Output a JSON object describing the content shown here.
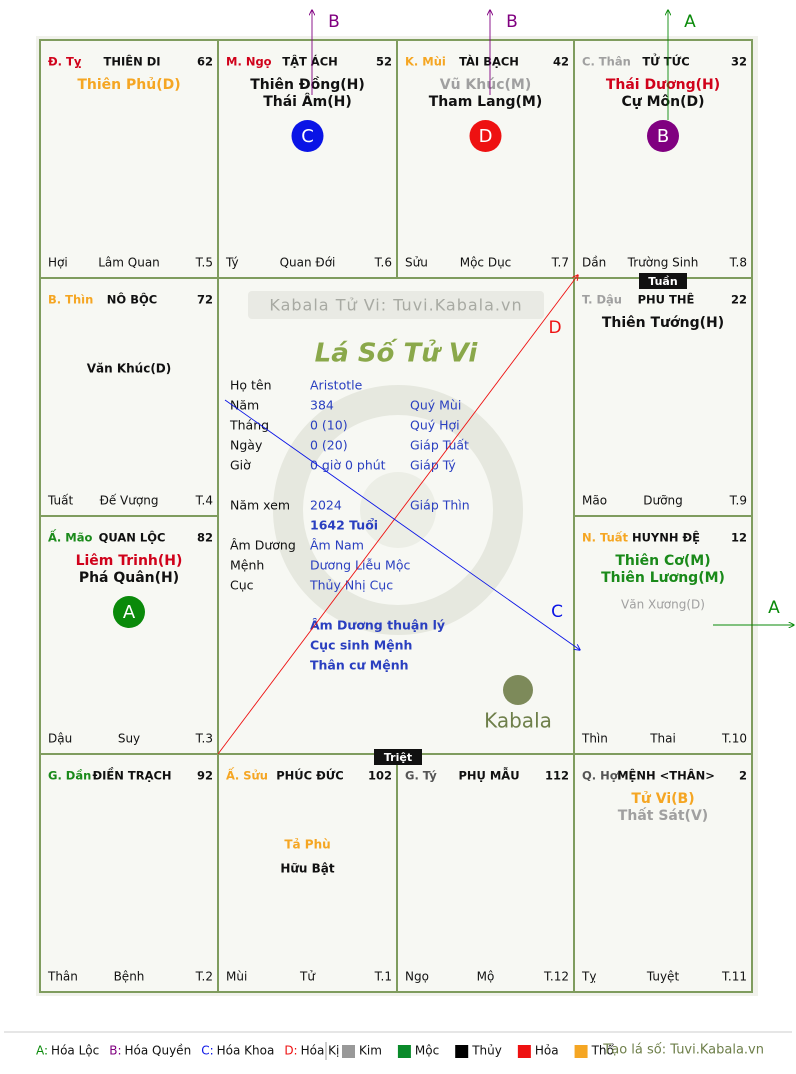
{
  "palaces": [
    {
      "can_chi": "Đ. Tỵ",
      "can_chi_color": "#d0021b",
      "name": "THIÊN DI",
      "number": 62,
      "main_stars": [
        {
          "text": "Thiên Phủ(D)",
          "color": "#f5a623"
        }
      ],
      "bottom": [
        "Hợi",
        "Lâm Quan",
        "T.5"
      ]
    },
    {
      "can_chi": "M. Ngọ",
      "can_chi_color": "#d0021b",
      "name": "TẬT ÁCH",
      "number": 52,
      "main_stars": [
        {
          "text": "Thiên Đồng(H)",
          "color": "#111111"
        },
        {
          "text": "Thái Âm(H)",
          "color": "#111111"
        }
      ],
      "badge": {
        "text": "C",
        "color": "#0a14e6"
      },
      "bottom": [
        "Tý",
        "Quan Đới",
        "T.6"
      ]
    },
    {
      "can_chi": "K. Mùi",
      "can_chi_color": "#f5a623",
      "name": "TÀI BẠCH",
      "number": 42,
      "main_stars": [
        {
          "text": "Vũ Khúc(M)",
          "color": "#a0a0a0"
        },
        {
          "text": "Tham Lang(M)",
          "color": "#111111"
        }
      ],
      "badge": {
        "text": "D",
        "color": "#ee1111"
      },
      "bottom": [
        "Sửu",
        "Mộc Dục",
        "T.7"
      ]
    },
    {
      "can_chi": "C. Thân",
      "can_chi_color": "#a0a0a0",
      "name": "TỬ TỨC",
      "number": 32,
      "main_stars": [
        {
          "text": "Thái Dương(H)",
          "color": "#d0021b"
        },
        {
          "text": "Cự Môn(D)",
          "color": "#111111"
        }
      ],
      "badge": {
        "text": "B",
        "color": "#800080"
      },
      "bottom": [
        "Dần",
        "Trường Sinh",
        "T.8"
      ]
    },
    {
      "can_chi": "B. Thìn",
      "can_chi_color": "#f5a623",
      "name": "NÔ BỘC",
      "number": 72,
      "minor_stars": [
        {
          "text": "Văn Khúc(D)",
          "color": "#111111"
        }
      ],
      "bottom": [
        "Tuất",
        "Đế Vượng",
        "T.4"
      ]
    },
    {
      "can_chi": "T. Dậu",
      "can_chi_color": "#a0a0a0",
      "name": "PHU THÊ",
      "number": 22,
      "main_stars": [
        {
          "text": "Thiên Tướng(H)",
          "color": "#111111"
        }
      ],
      "bottom": [
        "Mão",
        "Dưỡng",
        "T.9"
      ]
    },
    {
      "can_chi": "Ấ. Mão",
      "can_chi_color": "#1a8a1a",
      "name": "QUAN LỘC",
      "number": 82,
      "main_stars": [
        {
          "text": "Liêm Trinh(H)",
          "color": "#d0021b"
        },
        {
          "text": "Phá Quân(H)",
          "color": "#111111"
        }
      ],
      "badge": {
        "text": "A",
        "color": "#0a8a0a"
      },
      "bottom": [
        "Dậu",
        "Suy",
        "T.3"
      ]
    },
    {
      "can_chi": "N. Tuất",
      "can_chi_color": "#f5a623",
      "name": "HUYNH ĐỆ",
      "number": 12,
      "main_stars": [
        {
          "text": "Thiên Cơ(M)",
          "color": "#1a8a1a"
        },
        {
          "text": "Thiên Lương(M)",
          "color": "#1a8a1a"
        }
      ],
      "minor_stars": [
        {
          "text": "Văn Xương(D)",
          "color": "#a0a0a0"
        }
      ],
      "bottom": [
        "Thìn",
        "Thai",
        "T.10"
      ]
    },
    {
      "can_chi": "G. Dần",
      "can_chi_color": "#1a8a1a",
      "name": "ĐIỀN TRẠCH",
      "number": 92,
      "bottom": [
        "Thân",
        "Bệnh",
        "T.2"
      ]
    },
    {
      "can_chi": "Ấ. Sửu",
      "can_chi_color": "#f5a623",
      "name": "PHÚC ĐỨC",
      "number": 102,
      "minor_stars": [
        {
          "text": "Tả Phù",
          "color": "#f5a623"
        },
        {
          "text": "Hữu Bật",
          "color": "#111111"
        }
      ],
      "bottom": [
        "Mùi",
        "Tử",
        "T.1"
      ]
    },
    {
      "can_chi": "G. Tý",
      "can_chi_color": "#555555",
      "name": "PHỤ MẪU",
      "number": 112,
      "bottom": [
        "Ngọ",
        "Mộ",
        "T.12"
      ]
    },
    {
      "can_chi": "Q. Hợi",
      "can_chi_color": "#555555",
      "name": "MỆNH <THÂN>",
      "number": 2,
      "main_stars": [
        {
          "text": "Tử Vi(B)",
          "color": "#f5a623"
        },
        {
          "text": "Thất Sát(V)",
          "color": "#a0a0a0"
        }
      ],
      "bottom": [
        "Tỵ",
        "Tuyệt",
        "T.11"
      ]
    }
  ],
  "markers": [
    "Tuần",
    "Triệt"
  ],
  "center": {
    "watermark": "Kabala Tử Vi: Tuvi.Kabala.vn",
    "title": "Lá Số Tử Vi",
    "info": [
      {
        "label": "Họ tên",
        "value": "Aristotle"
      },
      {
        "label": "Năm",
        "value": "384",
        "extra": "Quý Mùi"
      },
      {
        "label": "Tháng",
        "value": "0  (10)",
        "extra": "Quý Hợi"
      },
      {
        "label": "Ngày",
        "value": "0  (20)",
        "extra": "Giáp Tuất"
      },
      {
        "label": "Giờ",
        "value": "0 giờ 0 phút",
        "extra": "Giáp Tý"
      },
      {
        "label": "Năm xem",
        "value": "2024",
        "extra": "Giáp Thìn"
      },
      {
        "value": "1642 Tuổi"
      },
      {
        "label": "Âm Dương",
        "value": "Âm Nam"
      },
      {
        "label": "Mệnh",
        "value": "Dương Liễu Mộc"
      },
      {
        "label": "Cục",
        "value": "Thủy Nhị Cục"
      }
    ],
    "notes": [
      "Âm Dương thuận lý",
      "Cục sinh Mệnh",
      "Thân cư Mệnh"
    ],
    "logo": "Kabala"
  },
  "arrows": [
    {
      "label": "B",
      "color": "#800080"
    },
    {
      "label": "B",
      "color": "#800080"
    },
    {
      "label": "A",
      "color": "#0a8a0a"
    },
    {
      "label": "A",
      "color": "#0a8a0a"
    }
  ],
  "diagonals": [
    {
      "label": "D",
      "color": "#ee1111"
    },
    {
      "label": "C",
      "color": "#0a14e6"
    }
  ],
  "legend": {
    "hoa": [
      {
        "key": "A:",
        "label": "Hóa Lộc",
        "color": "#0a8a0a"
      },
      {
        "key": "B:",
        "label": "Hóa Quyền",
        "color": "#800080"
      },
      {
        "key": "C:",
        "label": "Hóa Khoa",
        "color": "#0a14e6"
      },
      {
        "key": "D:",
        "label": "Hóa Kị",
        "color": "#ee1111"
      }
    ],
    "elements": [
      {
        "label": "Kim",
        "color": "#999999"
      },
      {
        "label": "Mộc",
        "color": "#0a8a2a"
      },
      {
        "label": "Thủy",
        "color": "#000000"
      },
      {
        "label": "Hỏa",
        "color": "#ee1111"
      },
      {
        "label": "Thổ",
        "color": "#f5a623"
      }
    ],
    "credit": "Tạo lá số: Tuvi.Kabala.vn"
  }
}
